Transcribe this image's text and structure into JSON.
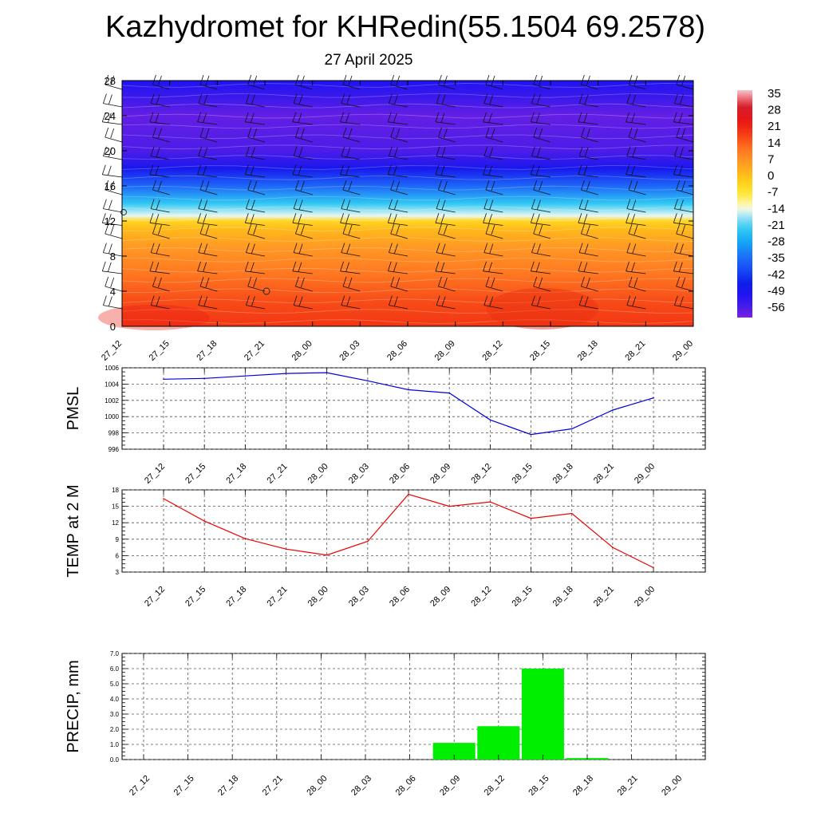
{
  "header": {
    "title": "Kazhydromet for KHRedin(55.1504 69.2578)",
    "subtitle": "27 April 2025"
  },
  "colors": {
    "pmsl_line": "#0000dd",
    "temp_line": "#ee0000",
    "precip_bar": "#00ee00",
    "grid": "#555555"
  },
  "chart_data": [
    {
      "type": "heatmap",
      "title": "",
      "x_ticks": [
        "27_12",
        "27_15",
        "27_18",
        "27_21",
        "28_00",
        "28_03",
        "28_06",
        "28_09",
        "28_12",
        "28_15",
        "28_18",
        "28_21",
        "29_00"
      ],
      "y_ticks": [
        0,
        4,
        8,
        12,
        16,
        20,
        24,
        28
      ],
      "ylim": [
        0,
        28
      ],
      "colorbar": {
        "labels": [
          35,
          28,
          21,
          14,
          7,
          0,
          -7,
          -14,
          -21,
          -28,
          -35,
          -42,
          -49,
          -56
        ],
        "range": [
          -60,
          38
        ]
      },
      "temperature_profile": [
        {
          "y": 0,
          "value": 20
        },
        {
          "y": 3,
          "value": 17
        },
        {
          "y": 6,
          "value": 12
        },
        {
          "y": 9,
          "value": 7
        },
        {
          "y": 11,
          "value": 2
        },
        {
          "y": 12,
          "value": -3
        },
        {
          "y": 12.6,
          "value": -14
        },
        {
          "y": 14,
          "value": -22
        },
        {
          "y": 16,
          "value": -35
        },
        {
          "y": 18,
          "value": -48
        },
        {
          "y": 20,
          "value": -56
        },
        {
          "y": 24,
          "value": -58
        },
        {
          "y": 26,
          "value": -54
        },
        {
          "y": 28,
          "value": -50
        }
      ]
    },
    {
      "type": "line",
      "ylabel": "PMSL",
      "x": [
        "27_12",
        "27_15",
        "27_18",
        "27_21",
        "28_00",
        "28_03",
        "28_06",
        "28_09",
        "28_12",
        "28_15",
        "28_18",
        "28_21",
        "29_00"
      ],
      "y_ticks": [
        996,
        998,
        1000,
        1002,
        1004,
        1006
      ],
      "ylim": [
        996,
        1006
      ],
      "values": [
        1004.6,
        1004.7,
        1005.0,
        1005.3,
        1005.4,
        1004.4,
        1003.3,
        1002.9,
        999.6,
        997.8,
        998.5,
        1000.8,
        1002.3
      ]
    },
    {
      "type": "line",
      "ylabel": "TEMP at 2 M",
      "x": [
        "27_12",
        "27_15",
        "27_18",
        "27_21",
        "28_00",
        "28_03",
        "28_06",
        "28_09",
        "28_12",
        "28_15",
        "28_18",
        "28_21",
        "29_00"
      ],
      "y_ticks": [
        3,
        6,
        9,
        12,
        15,
        18
      ],
      "ylim": [
        3,
        18
      ],
      "values": [
        16.4,
        12.3,
        9.1,
        7.2,
        6.1,
        8.6,
        17.2,
        15.0,
        15.8,
        12.8,
        13.7,
        7.5,
        3.8
      ]
    },
    {
      "type": "bar",
      "ylabel": "PRECIP, mm",
      "categories": [
        "27_12",
        "27_15",
        "27_18",
        "27_21",
        "28_00",
        "28_03",
        "28_06",
        "28_09",
        "28_12",
        "28_15",
        "28_18",
        "28_21",
        "29_00"
      ],
      "y_ticks": [
        "0.0",
        "1.0",
        "2.0",
        "3.0",
        "4.0",
        "5.0",
        "6.0",
        "7.0"
      ],
      "ylim": [
        0,
        7
      ],
      "values": [
        0,
        0,
        0,
        0,
        0,
        0,
        0,
        1.1,
        2.2,
        6.0,
        0.1,
        0,
        0
      ]
    }
  ]
}
